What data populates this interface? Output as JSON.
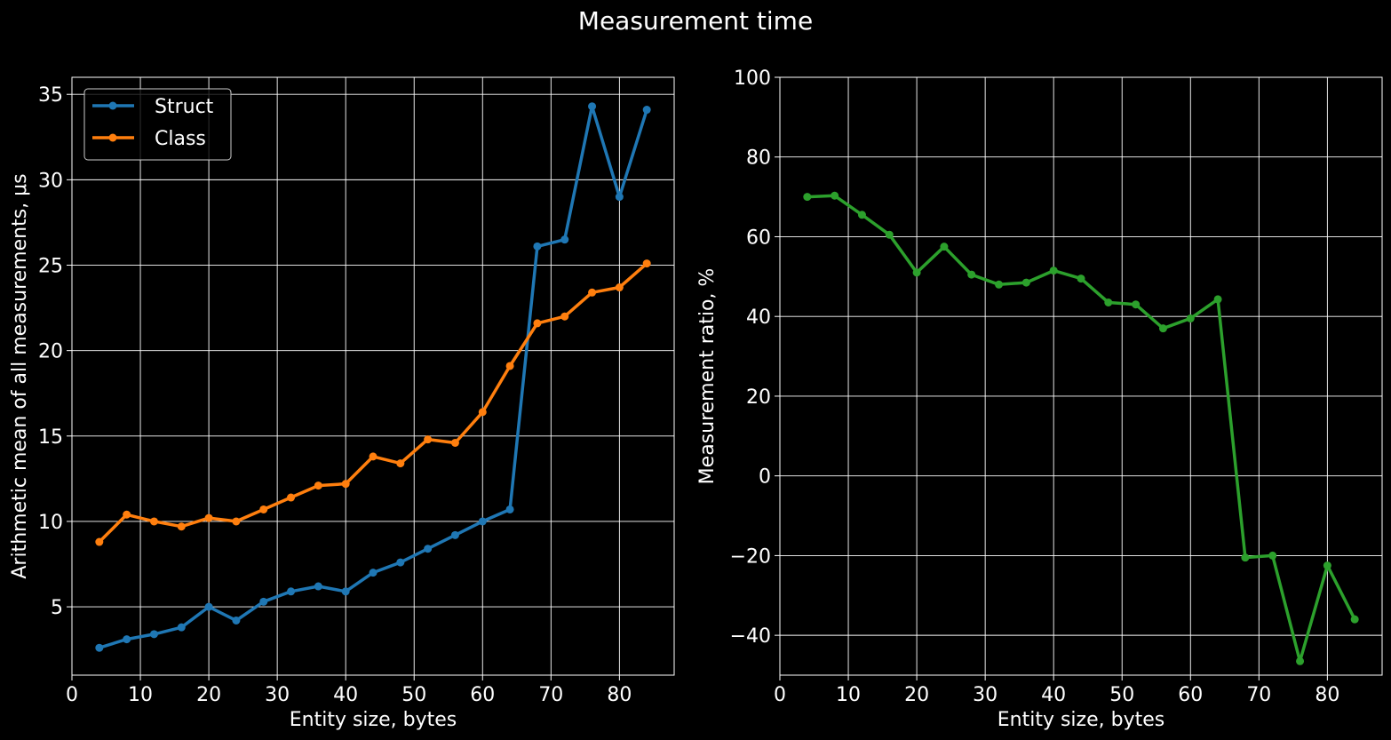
{
  "figure": {
    "title": "Measurement time"
  },
  "chart_data": [
    {
      "type": "line",
      "xlabel": "Entity size, bytes",
      "ylabel": "Arithmetic mean of all measurements, μs",
      "xlim": [
        0,
        88
      ],
      "ylim": [
        1,
        36
      ],
      "xticks": [
        0,
        10,
        20,
        30,
        40,
        50,
        60,
        70,
        80
      ],
      "yticks": [
        5,
        10,
        15,
        20,
        25,
        30,
        35
      ],
      "grid": true,
      "legend": "top-left",
      "x": [
        4,
        8,
        12,
        16,
        20,
        24,
        28,
        32,
        36,
        40,
        44,
        48,
        52,
        56,
        60,
        64,
        68,
        72,
        76,
        80,
        84
      ],
      "series": [
        {
          "name": "Struct",
          "color": "#1f77b4",
          "values": [
            2.6,
            3.1,
            3.4,
            3.8,
            5.0,
            4.2,
            5.3,
            5.9,
            6.2,
            5.9,
            7.0,
            7.6,
            8.4,
            9.2,
            10.0,
            10.7,
            26.1,
            26.5,
            34.3,
            29.0,
            34.1
          ]
        },
        {
          "name": "Class",
          "color": "#ff7f0e",
          "values": [
            8.8,
            10.4,
            10.0,
            9.7,
            10.2,
            10.0,
            10.7,
            11.4,
            12.1,
            12.2,
            13.8,
            13.4,
            14.8,
            14.6,
            16.4,
            19.1,
            21.6,
            22.0,
            23.4,
            23.7,
            25.1
          ]
        }
      ]
    },
    {
      "type": "line",
      "xlabel": "Entity size, bytes",
      "ylabel": "Measurement ratio, %",
      "xlim": [
        0,
        88
      ],
      "ylim": [
        -50,
        100
      ],
      "xticks": [
        0,
        10,
        20,
        30,
        40,
        50,
        60,
        70,
        80
      ],
      "yticks": [
        -40,
        -20,
        0,
        20,
        40,
        60,
        80,
        100
      ],
      "grid": true,
      "x": [
        4,
        8,
        12,
        16,
        20,
        24,
        28,
        32,
        36,
        40,
        44,
        48,
        52,
        56,
        60,
        64,
        68,
        72,
        76,
        80,
        84
      ],
      "series": [
        {
          "color": "#2ca02c",
          "values": [
            70,
            70.3,
            65.5,
            60.5,
            51,
            57.5,
            50.5,
            48,
            48.5,
            51.5,
            49.5,
            43.5,
            43,
            37,
            39.5,
            44.3,
            -20.5,
            -20,
            -46.5,
            -22.5,
            -36
          ]
        }
      ]
    }
  ]
}
